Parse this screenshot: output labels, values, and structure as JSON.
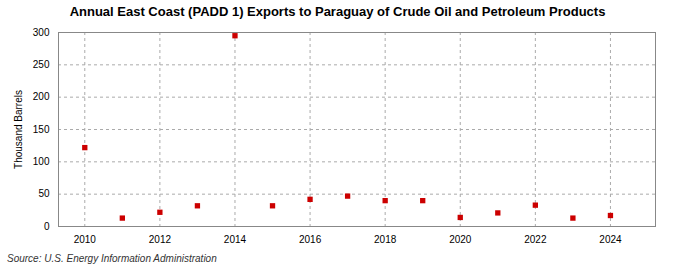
{
  "chart_data": {
    "type": "scatter",
    "title": "Annual East Coast (PADD 1) Exports to Paraguay of Crude Oil and Petroleum Products",
    "ylabel": "Thousand Barrels",
    "source": "Source: U.S. Energy Information Administration",
    "x": [
      2010,
      2011,
      2012,
      2013,
      2014,
      2015,
      2016,
      2017,
      2018,
      2019,
      2020,
      2021,
      2022,
      2023,
      2024
    ],
    "values": [
      122,
      13,
      22,
      32,
      295,
      32,
      42,
      47,
      40,
      40,
      14,
      21,
      33,
      13,
      17
    ],
    "color": "#cc0000",
    "marker": "square",
    "xlim": [
      2009.3,
      2025.2
    ],
    "ylim": [
      0,
      300
    ],
    "xticks": [
      2010,
      2012,
      2014,
      2016,
      2018,
      2020,
      2022,
      2024
    ],
    "yticks": [
      0,
      50,
      100,
      150,
      200,
      250,
      300
    ],
    "grid": true
  }
}
